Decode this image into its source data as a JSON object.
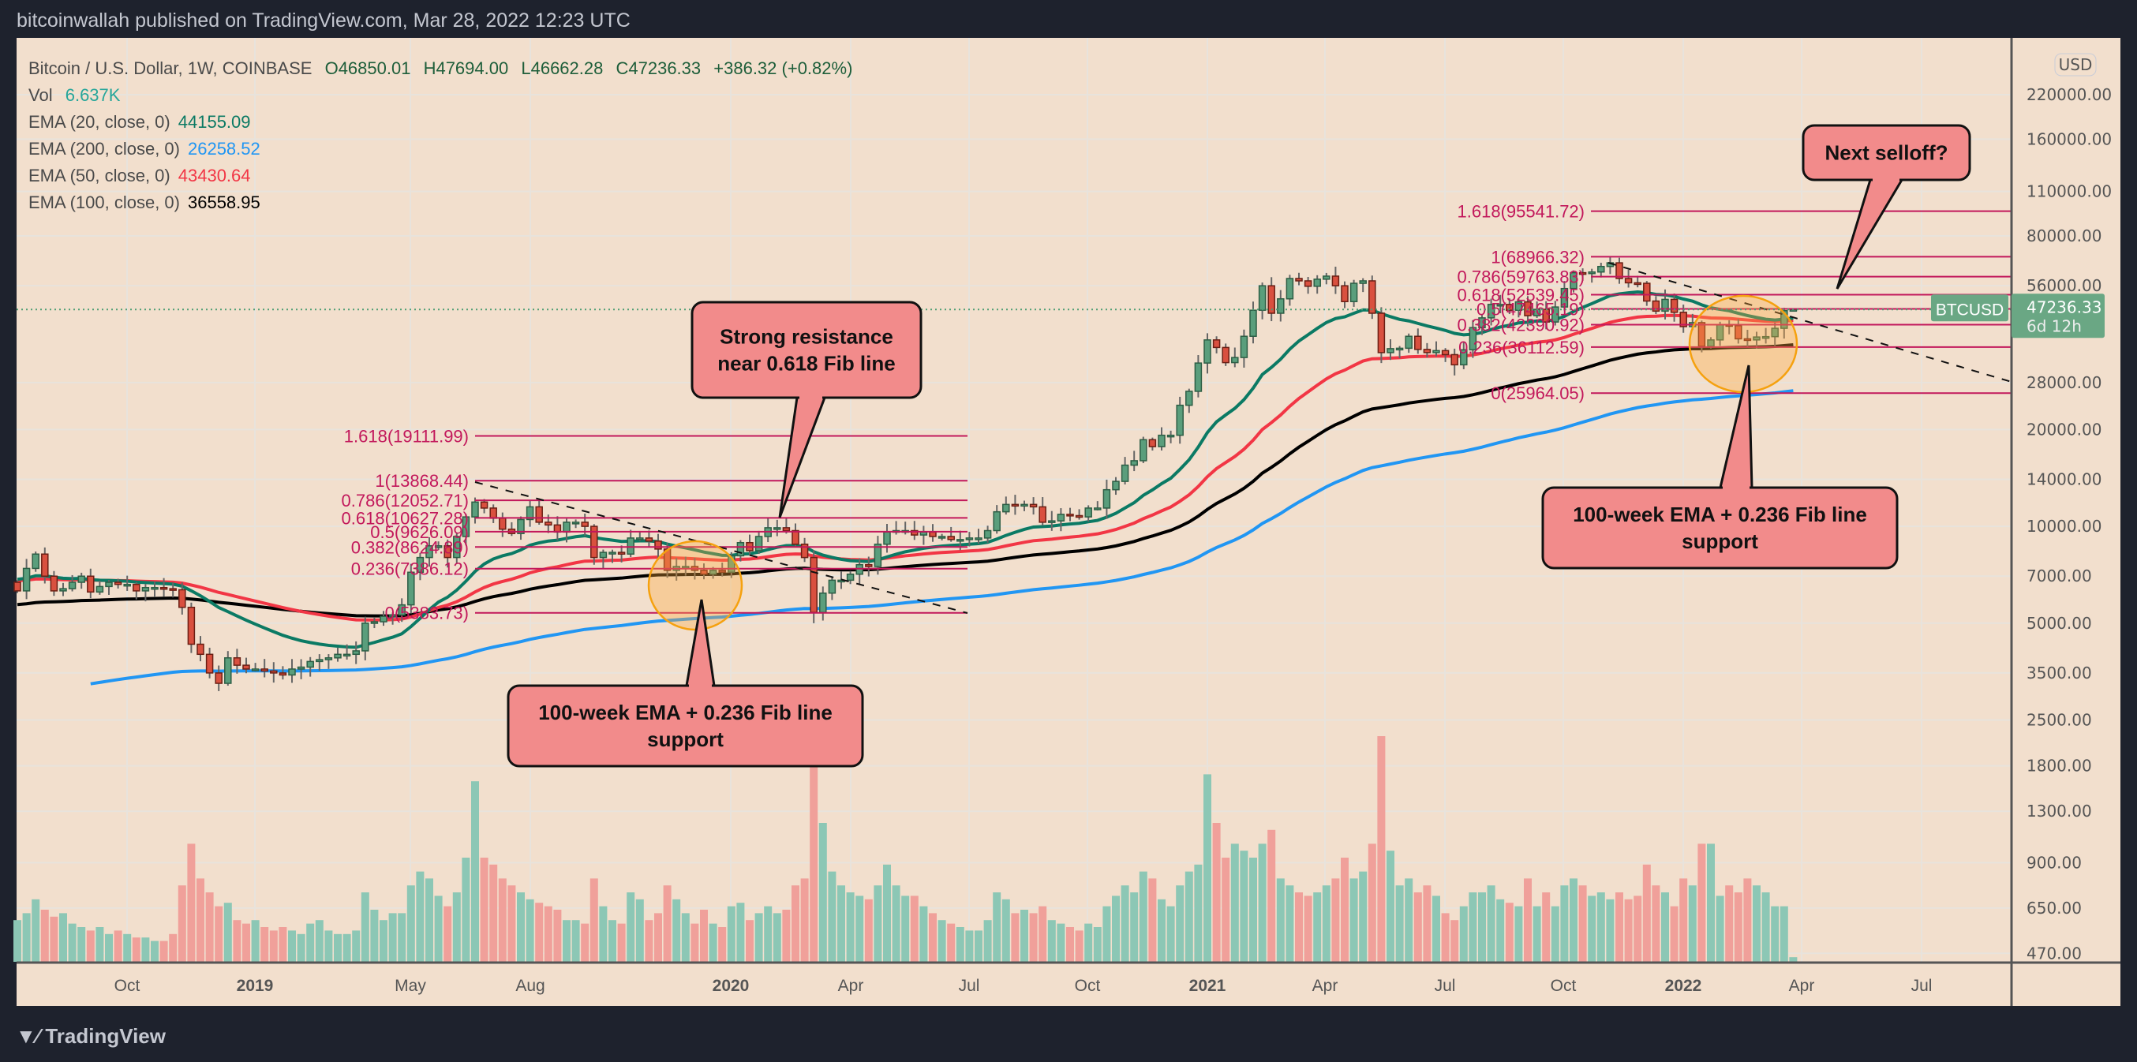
{
  "header": {
    "title": "bitcoinwallah published on TradingView.com, Mar 28, 2022 12:23 UTC"
  },
  "legend": {
    "symbol": "Bitcoin / U.S. Dollar, 1W, COINBASE",
    "open": "O46850.01",
    "high": "H47694.00",
    "low": "L46662.28",
    "close": "C47236.33",
    "change": "+386.32 (+0.82%)",
    "vol_label": "Vol",
    "vol_value": "6.637K",
    "emas": [
      {
        "label": "EMA (20, close, 0)",
        "value": "44155.09",
        "color": "#0b7a64"
      },
      {
        "label": "EMA (200, close, 0)",
        "value": "26258.52",
        "color": "#2196f3"
      },
      {
        "label": "EMA (50, close, 0)",
        "value": "43430.64",
        "color": "#f23645"
      },
      {
        "label": "EMA (100, close, 0)",
        "value": "36558.95",
        "color": "#000000"
      }
    ]
  },
  "price_axis": {
    "currency": "USD",
    "labels": [
      "220000.00",
      "160000.00",
      "110000.00",
      "80000.00",
      "56000.00",
      "28000.00",
      "20000.00",
      "14000.00",
      "10000.00",
      "7000.00",
      "5000.00",
      "3500.00",
      "2500.00",
      "1800.00",
      "1300.00",
      "900.00",
      "650.00",
      "470.00"
    ],
    "last_price": "47236.33",
    "countdown": "6d 12h",
    "symbol_tag": "BTCUSD"
  },
  "time_axis": {
    "labels": [
      "Oct",
      "2019",
      "May",
      "Aug",
      "2020",
      "Apr",
      "Jul",
      "Oct",
      "2021",
      "Apr",
      "Jul",
      "Oct",
      "2022",
      "Apr",
      "Jul"
    ]
  },
  "footer": {
    "logo": "TradingView"
  },
  "colors": {
    "up": "#5a9e7c",
    "down": "#d9503f",
    "vol_up": "#8cc7b5",
    "vol_down": "#f0a09a",
    "fib": "#c2185b",
    "callout": "#f28b8b",
    "bg": "#f2dfcd"
  },
  "chart_data": {
    "type": "candlestick",
    "title": "Bitcoin / U.S. Dollar, 1W, COINBASE",
    "y_scale": "log",
    "start_week": "2018-07-09",
    "closes": [
      6300,
      7400,
      8200,
      7000,
      6300,
      6400,
      6700,
      7000,
      6250,
      6500,
      6700,
      6600,
      6600,
      6300,
      6450,
      6450,
      6400,
      6350,
      5600,
      4300,
      4000,
      3500,
      3250,
      3900,
      3700,
      3600,
      3600,
      3550,
      3500,
      3450,
      3600,
      3650,
      3800,
      3850,
      3900,
      4000,
      4000,
      4100,
      5000,
      5050,
      5250,
      5300,
      5700,
      7200,
      8000,
      8700,
      8700,
      8000,
      9300,
      10700,
      11900,
      11400,
      10600,
      9800,
      9500,
      10500,
      11500,
      10300,
      10100,
      9600,
      10300,
      10300,
      10000,
      8000,
      8300,
      8300,
      8200,
      9200,
      9200,
      9000,
      8500,
      7300,
      7500,
      7500,
      7300,
      7100,
      7300,
      7200,
      8100,
      8900,
      8400,
      9300,
      9900,
      9900,
      9700,
      8800,
      8000,
      5400,
      6200,
      6800,
      6800,
      7100,
      7600,
      7500,
      8800,
      9600,
      9700,
      9700,
      9400,
      9600,
      9300,
      9300,
      9100,
      9100,
      9200,
      9200,
      9700,
      11100,
      11700,
      11600,
      11700,
      11500,
      10300,
      10400,
      10900,
      10800,
      10700,
      11400,
      11400,
      13000,
      13800,
      15500,
      16000,
      18600,
      17700,
      19200,
      19200,
      23800,
      26300,
      32200,
      38000,
      36000,
      32300,
      33500,
      39000,
      47000,
      56000,
      46000,
      51000,
      59000,
      58000,
      55800,
      58700,
      60000,
      56000,
      50000,
      57000,
      58000,
      46000,
      34700,
      35700,
      35800,
      39000,
      35500,
      34700,
      35200,
      34200,
      31800,
      35400,
      41500,
      44500,
      49000,
      49000,
      47000,
      49900,
      45200,
      47300,
      43200,
      48100,
      54900,
      61500,
      61300,
      61800,
      64300,
      66000,
      59000,
      57200,
      57000,
      50200,
      46700,
      50800,
      46300,
      41800,
      43000,
      36300,
      38000,
      42400,
      42100,
      38300,
      38000,
      38800,
      38900,
      41300,
      46850,
      47236.33
    ],
    "volumes_k": [
      60,
      70,
      90,
      75,
      65,
      70,
      55,
      50,
      45,
      50,
      40,
      45,
      40,
      35,
      35,
      30,
      30,
      40,
      110,
      170,
      120,
      100,
      80,
      85,
      60,
      55,
      60,
      50,
      45,
      50,
      45,
      40,
      55,
      60,
      45,
      40,
      40,
      45,
      100,
      75,
      60,
      70,
      70,
      110,
      130,
      120,
      95,
      80,
      100,
      150,
      260,
      150,
      140,
      120,
      110,
      100,
      90,
      85,
      80,
      75,
      60,
      60,
      55,
      120,
      80,
      60,
      55,
      100,
      90,
      60,
      70,
      110,
      90,
      70,
      55,
      75,
      55,
      50,
      80,
      85,
      60,
      70,
      80,
      70,
      75,
      110,
      120,
      330,
      200,
      130,
      110,
      100,
      95,
      90,
      110,
      140,
      110,
      95,
      95,
      80,
      70,
      60,
      55,
      50,
      45,
      45,
      60,
      100,
      90,
      70,
      75,
      70,
      80,
      60,
      55,
      50,
      45,
      55,
      50,
      80,
      95,
      110,
      100,
      130,
      120,
      90,
      80,
      110,
      130,
      140,
      270,
      200,
      150,
      170,
      160,
      150,
      170,
      190,
      120,
      110,
      100,
      95,
      100,
      110,
      120,
      150,
      120,
      130,
      170,
      325,
      160,
      110,
      120,
      100,
      110,
      95,
      70,
      60,
      80,
      100,
      100,
      110,
      90,
      85,
      80,
      120,
      80,
      100,
      80,
      110,
      120,
      110,
      95,
      100,
      90,
      100,
      90,
      95,
      140,
      110,
      100,
      80,
      120,
      110,
      170,
      170,
      95,
      110,
      100,
      120,
      110,
      100,
      80,
      80,
      6.637
    ],
    "fib_sets": [
      {
        "levels": [
          {
            "ratio": "1.618",
            "price": 19111.99,
            "label": "1.618(19111.99)"
          },
          {
            "ratio": "1",
            "price": 13868.44,
            "label": "1(13868.44)"
          },
          {
            "ratio": "0.786",
            "price": 12052.71,
            "label": "0.786(12052.71)"
          },
          {
            "ratio": "0.618",
            "price": 10627.28,
            "label": "0.618(10627.28)"
          },
          {
            "ratio": "0.5",
            "price": 9626.09,
            "label": "0.5(9626.09)"
          },
          {
            "ratio": "0.382",
            "price": 8624.89,
            "label": "0.382(8624.89)"
          },
          {
            "ratio": "0.236",
            "price": 7386.12,
            "label": "0.236(7386.12)"
          },
          {
            "ratio": "0",
            "price": 5383.73,
            "label": "0(5383.73)"
          }
        ]
      },
      {
        "levels": [
          {
            "ratio": "1.618",
            "price": 95541.72,
            "label": "1.618(95541.72)"
          },
          {
            "ratio": "1",
            "price": 68966.32,
            "label": "1(68966.32)"
          },
          {
            "ratio": "0.786",
            "price": 59763.83,
            "label": "0.786(59763.83)"
          },
          {
            "ratio": "0.618",
            "price": 52539.45,
            "label": "0.618(52539.45)"
          },
          {
            "ratio": "0.5",
            "price": 47465.19,
            "label": "0.5(47465.19)"
          },
          {
            "ratio": "0.382",
            "price": 42390.92,
            "label": "0.382(42390.92)"
          },
          {
            "ratio": "0.236",
            "price": 36112.59,
            "label": "0.236(36112.59)"
          },
          {
            "ratio": "0",
            "price": 25964.05,
            "label": "0(25964.05)"
          }
        ]
      }
    ],
    "annotations": [
      {
        "lines": [
          "Strong resistance",
          "near 0.618 Fib line"
        ]
      },
      {
        "lines": [
          "100-week EMA + 0.236 Fib line",
          "support"
        ]
      },
      {
        "lines": [
          "Next selloff?"
        ]
      },
      {
        "lines": [
          "100-week EMA + 0.236 Fib line",
          "support"
        ]
      }
    ]
  }
}
